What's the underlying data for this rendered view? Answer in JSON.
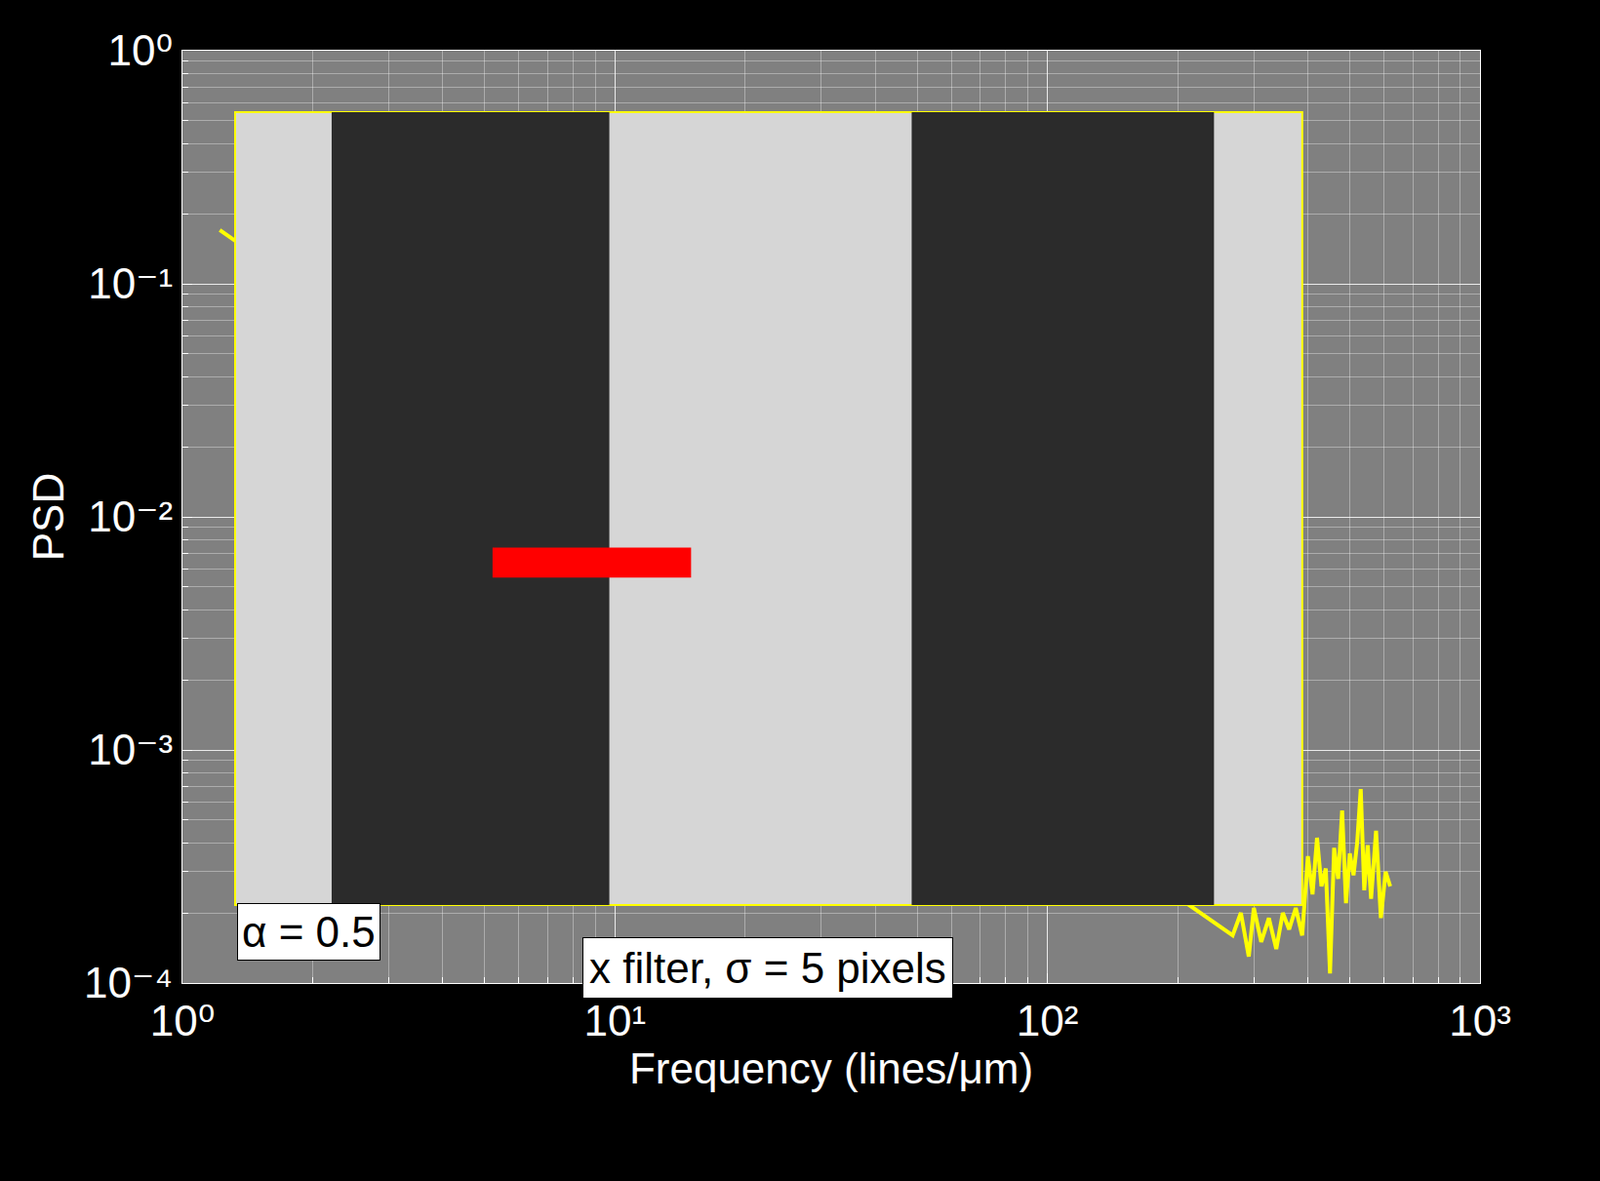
{
  "chart_data": {
    "type": "line",
    "x_label": "Frequency (lines/μm)",
    "y_label": "PSD",
    "log": true,
    "grid": true,
    "xlim": [
      1,
      1000
    ],
    "ylim": [
      0.0001,
      1
    ],
    "xticks": [
      {
        "value": 1,
        "label": "10⁰"
      },
      {
        "value": 10,
        "label": "10¹"
      },
      {
        "value": 100,
        "label": "10²"
      },
      {
        "value": 1000,
        "label": "10³"
      }
    ],
    "yticks": [
      {
        "value": 0.0001,
        "label": "10⁻⁴"
      },
      {
        "value": 0.001,
        "label": "10⁻³"
      },
      {
        "value": 0.01,
        "label": "10⁻²"
      },
      {
        "value": 0.1,
        "label": "10⁻¹"
      },
      {
        "value": 1,
        "label": "10⁰"
      }
    ],
    "color": "#ffff00",
    "x": [
      1.22,
      268,
      280,
      292,
      300,
      312,
      325,
      338,
      350,
      362,
      375,
      388,
      400,
      410,
      420,
      430,
      440,
      450,
      460,
      470,
      480,
      490,
      500,
      510,
      520,
      530,
      540,
      550,
      560,
      575,
      590,
      605,
      620
    ],
    "values": [
      0.17,
      0.00016,
      0.0002,
      0.00013,
      0.00021,
      0.00015,
      0.00019,
      0.00014,
      0.0002,
      0.00017,
      0.00021,
      0.00016,
      0.00035,
      0.00024,
      0.00042,
      0.00026,
      0.00031,
      0.00011,
      0.00038,
      0.00028,
      0.00055,
      0.00022,
      0.00036,
      0.00029,
      0.0004,
      0.00068,
      0.00025,
      0.00039,
      0.00023,
      0.00045,
      0.00019,
      0.0003,
      0.00026
    ],
    "annotations": [
      "α = 0.5",
      "x filter, σ = 5 pixels"
    ]
  }
}
